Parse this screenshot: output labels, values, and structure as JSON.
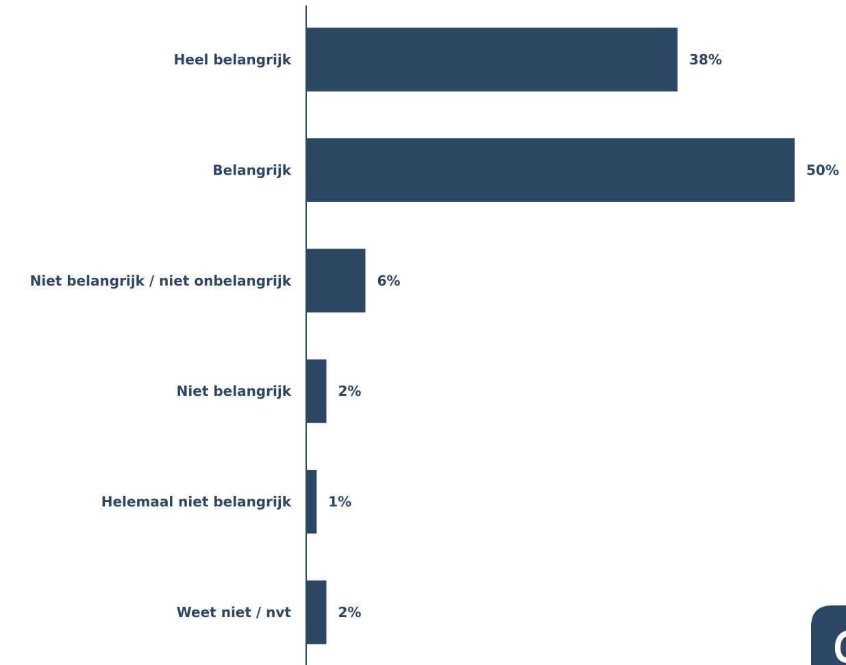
{
  "chart_data": {
    "type": "bar",
    "orientation": "horizontal",
    "categories": [
      "Heel belangrijk",
      "Belangrijk",
      "Niet belangrijk / niet onbelangrijk",
      "Niet belangrijk",
      "Helemaal niet belangrijk",
      "Weet niet / nvt"
    ],
    "values": [
      38,
      50,
      6,
      2,
      1,
      2
    ],
    "value_labels": [
      "38%",
      "50%",
      "6%",
      "2%",
      "1%",
      "2%"
    ],
    "unit": "%",
    "xlim": [
      0,
      50
    ],
    "grid": false,
    "legend": "none",
    "title": "",
    "xlabel": "",
    "ylabel": ""
  },
  "colors": {
    "bar": "#2d4663",
    "text": "#2d4663",
    "axis": "#2d4663",
    "logo": "#2d4663"
  },
  "logo": {
    "icon": "brand-logo-icon"
  }
}
